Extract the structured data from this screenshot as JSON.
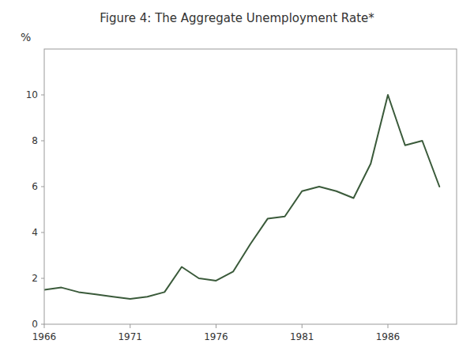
{
  "chart_data": {
    "type": "line",
    "title": "Figure 4:  The Aggregate Unemployment Rate*",
    "ylabel": "%",
    "x": [
      1966,
      1967,
      1968,
      1969,
      1970,
      1971,
      1972,
      1973,
      1974,
      1975,
      1976,
      1977,
      1978,
      1979,
      1980,
      1981,
      1982,
      1983,
      1984,
      1985,
      1986,
      1987,
      1988,
      1989
    ],
    "values": [
      1.5,
      1.6,
      1.4,
      1.3,
      1.2,
      1.1,
      1.2,
      1.4,
      2.5,
      2.0,
      1.9,
      2.3,
      3.5,
      4.6,
      4.7,
      5.8,
      6.0,
      5.8,
      5.5,
      7.0,
      10.0,
      7.8,
      8.0,
      6.0
    ],
    "color": "#3a5a3a",
    "xlim": [
      1966,
      1990
    ],
    "xticks": [
      1966,
      1971,
      1976,
      1981,
      1986
    ],
    "ylim": [
      0,
      12
    ],
    "yticks": [
      0,
      2,
      4,
      6,
      8,
      10
    ],
    "grid": false
  }
}
